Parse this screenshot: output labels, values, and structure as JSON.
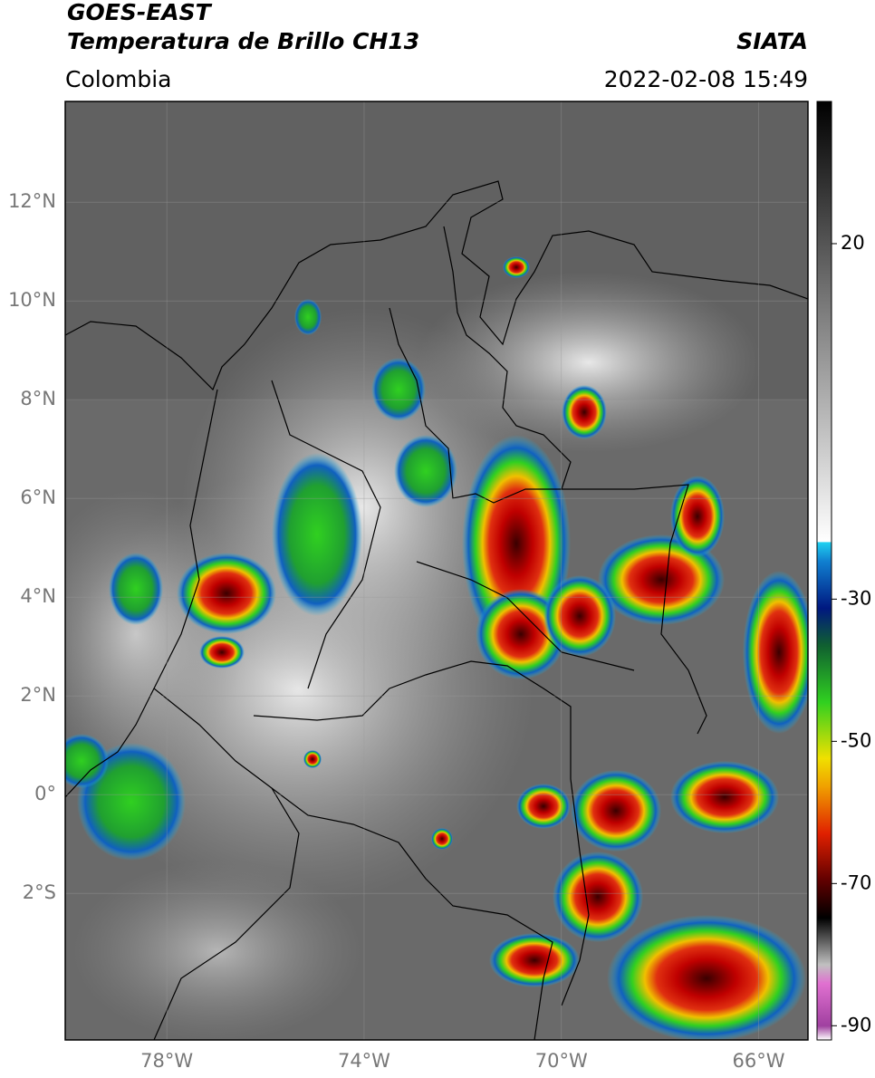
{
  "header": {
    "title_line1": "GOES-EAST",
    "title_line2": "Temperatura de Brillo CH13",
    "source": "SIATA",
    "region": "Colombia",
    "datetime": "2022-02-08 15:49"
  },
  "map": {
    "lat_range": [
      -4.97,
      14.04
    ],
    "lon_range": [
      -80.06,
      -65.0
    ],
    "lat_ticks": [
      {
        "value": 12,
        "label": "12°N"
      },
      {
        "value": 10,
        "label": "10°N"
      },
      {
        "value": 8,
        "label": "8°N"
      },
      {
        "value": 6,
        "label": "6°N"
      },
      {
        "value": 4,
        "label": "4°N"
      },
      {
        "value": 2,
        "label": "2°N"
      },
      {
        "value": 0,
        "label": "0°"
      },
      {
        "value": -2,
        "label": "2°S"
      }
    ],
    "lon_ticks": [
      {
        "value": -78,
        "label": "78°W"
      },
      {
        "value": -74,
        "label": "74°W"
      },
      {
        "value": -70,
        "label": "70°W"
      },
      {
        "value": -66,
        "label": "66°W"
      }
    ]
  },
  "colorbar": {
    "range": [
      -92,
      40
    ],
    "ticks": [
      20,
      -30,
      -50,
      -70,
      -90
    ]
  }
}
